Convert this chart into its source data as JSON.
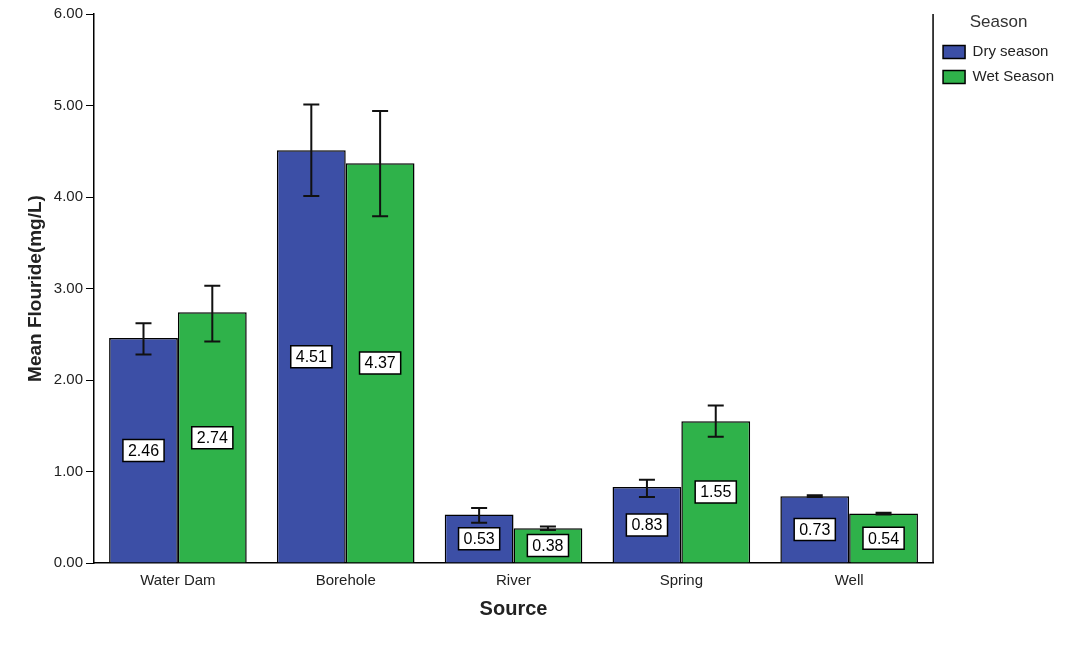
{
  "chart_data": {
    "type": "bar",
    "xlabel": "Source",
    "ylabel": "Mean Flouride(mg/L)",
    "legend_title": "Season",
    "categories": [
      "Water Dam",
      "Borehole",
      "River",
      "Spring",
      "Well"
    ],
    "series": [
      {
        "name": "Dry season",
        "color": "#3c4fa6",
        "values": [
          2.46,
          4.51,
          0.53,
          0.83,
          0.73
        ],
        "errors": [
          [
            2.28,
            2.62
          ],
          [
            4.01,
            5.01
          ],
          [
            0.44,
            0.6
          ],
          [
            0.72,
            0.91
          ],
          [
            0.72,
            0.74
          ]
        ]
      },
      {
        "name": "Wet Season",
        "color": "#2fb24a",
        "values": [
          2.74,
          4.37,
          0.38,
          1.55,
          0.54
        ],
        "errors": [
          [
            2.42,
            3.03
          ],
          [
            3.79,
            4.94
          ],
          [
            0.36,
            0.4
          ],
          [
            1.38,
            1.72
          ],
          [
            0.53,
            0.55
          ]
        ]
      }
    ],
    "ylim": [
      0,
      6
    ],
    "yticks": [
      {
        "value": 0,
        "label": "0.00"
      },
      {
        "value": 1,
        "label": "1.00"
      },
      {
        "value": 2,
        "label": "2.00"
      },
      {
        "value": 3,
        "label": "3.00"
      },
      {
        "value": 4,
        "label": "4.00"
      },
      {
        "value": 5,
        "label": "5.00"
      },
      {
        "value": 6,
        "label": "6.00"
      }
    ],
    "data_labels": true,
    "grid": false,
    "legend": "top right"
  }
}
